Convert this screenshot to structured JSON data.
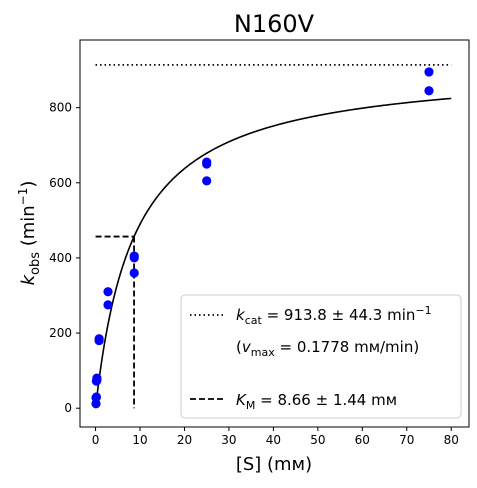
{
  "chart_data": {
    "type": "scatter",
    "title": "N160V",
    "xlabel": "[S] (mм)",
    "ylabel": "k_obs (min⁻¹)",
    "xlim": [
      -3.5,
      84
    ],
    "ylim": [
      -50,
      980
    ],
    "xticks": [
      0,
      10,
      20,
      30,
      40,
      50,
      60,
      70,
      80
    ],
    "yticks": [
      0,
      200,
      400,
      600,
      800
    ],
    "grid": false,
    "legend_placement": "lower-right",
    "colors": {
      "points": "#0000ff",
      "lines": "#000000"
    },
    "points": {
      "x": [
        0.1,
        0.1,
        0.2,
        0.2,
        0.3,
        0.3,
        0.8,
        0.8,
        2.8,
        2.8,
        8.7,
        8.7,
        8.7,
        25,
        25,
        25,
        75,
        75
      ],
      "y": [
        12,
        28,
        30,
        72,
        80,
        75,
        185,
        180,
        310,
        275,
        405,
        400,
        360,
        655,
        650,
        605,
        895,
        845
      ]
    },
    "fit": {
      "model": "michaelis-menten",
      "kcat": 913.8,
      "km": 8.66,
      "x_range": [
        0,
        80
      ]
    },
    "reference_lines": {
      "kcat_level": 913.8,
      "km_value": 8.66,
      "half_kcat": 456.9
    },
    "legend": {
      "kcat_label": "k_cat = 913.8 ± 44.3 min⁻¹",
      "kcat_label_parts": {
        "symbol": "k",
        "sub": "cat",
        "value": " = 913.8 ± 44.3 min",
        "sup": "−1"
      },
      "vmax_label": "(v_max = 0.1778 mм/min)",
      "vmax_label_parts": {
        "open": "(",
        "symbol": "v",
        "sub": "max",
        "value": " = 0.1778 mм/min)"
      },
      "km_label": "K_M = 8.66 ± 1.44 mм",
      "km_label_parts": {
        "symbol": "K",
        "sub": "M",
        "value": " = 8.66 ± 1.44 mм"
      }
    },
    "ylabel_parts": {
      "main": "k",
      "sub": "obs",
      "unit": " (min",
      "sup": "−1",
      "close": ")"
    }
  }
}
